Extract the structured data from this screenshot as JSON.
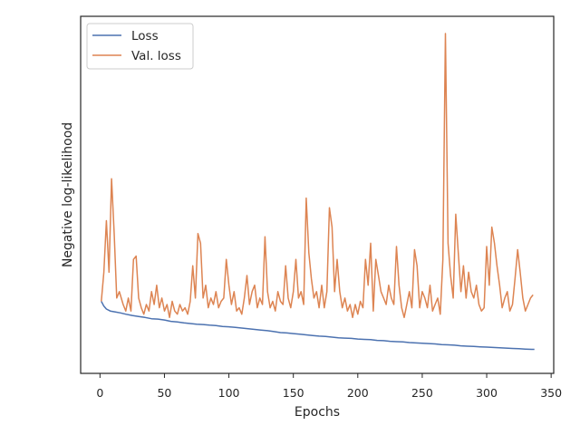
{
  "chart_data": {
    "type": "line",
    "title": "",
    "xlabel": "Epochs",
    "ylabel": "Negative log-likelihood",
    "xlim": [
      -15,
      352
    ],
    "ylim": [
      0,
      1
    ],
    "x_ticks": [
      0,
      50,
      100,
      150,
      200,
      250,
      300,
      350
    ],
    "y_ticks_shown": false,
    "grid": false,
    "legend_position": "top-left",
    "series": [
      {
        "name": "Loss",
        "color": "#4c72b0",
        "points": [
          [
            1,
            0.17
          ],
          [
            3,
            0.155
          ],
          [
            5,
            0.146
          ],
          [
            8,
            0.14
          ],
          [
            12,
            0.137
          ],
          [
            16,
            0.134
          ],
          [
            20,
            0.13
          ],
          [
            25,
            0.126
          ],
          [
            30,
            0.123
          ],
          [
            35,
            0.12
          ],
          [
            40,
            0.116
          ],
          [
            45,
            0.115
          ],
          [
            50,
            0.112
          ],
          [
            55,
            0.108
          ],
          [
            60,
            0.106
          ],
          [
            65,
            0.103
          ],
          [
            70,
            0.101
          ],
          [
            75,
            0.099
          ],
          [
            80,
            0.098
          ],
          [
            85,
            0.096
          ],
          [
            90,
            0.095
          ],
          [
            95,
            0.092
          ],
          [
            100,
            0.091
          ],
          [
            105,
            0.089
          ],
          [
            110,
            0.087
          ],
          [
            115,
            0.085
          ],
          [
            120,
            0.083
          ],
          [
            125,
            0.081
          ],
          [
            130,
            0.079
          ],
          [
            135,
            0.076
          ],
          [
            140,
            0.073
          ],
          [
            145,
            0.072
          ],
          [
            150,
            0.07
          ],
          [
            155,
            0.068
          ],
          [
            160,
            0.066
          ],
          [
            165,
            0.064
          ],
          [
            170,
            0.062
          ],
          [
            175,
            0.061
          ],
          [
            180,
            0.059
          ],
          [
            185,
            0.057
          ],
          [
            190,
            0.056
          ],
          [
            195,
            0.055
          ],
          [
            200,
            0.053
          ],
          [
            205,
            0.052
          ],
          [
            210,
            0.051
          ],
          [
            215,
            0.049
          ],
          [
            220,
            0.048
          ],
          [
            225,
            0.046
          ],
          [
            230,
            0.045
          ],
          [
            235,
            0.044
          ],
          [
            240,
            0.042
          ],
          [
            245,
            0.041
          ],
          [
            250,
            0.04
          ],
          [
            255,
            0.039
          ],
          [
            260,
            0.038
          ],
          [
            265,
            0.036
          ],
          [
            270,
            0.035
          ],
          [
            275,
            0.034
          ],
          [
            280,
            0.032
          ],
          [
            285,
            0.031
          ],
          [
            290,
            0.03
          ],
          [
            295,
            0.029
          ],
          [
            300,
            0.028
          ],
          [
            305,
            0.027
          ],
          [
            310,
            0.026
          ],
          [
            315,
            0.025
          ],
          [
            320,
            0.024
          ],
          [
            325,
            0.023
          ],
          [
            330,
            0.022
          ],
          [
            335,
            0.021
          ],
          [
            337,
            0.021
          ]
        ]
      },
      {
        "name": "Val. loss",
        "color": "#dd8452",
        "points": [
          [
            1,
            0.17
          ],
          [
            3,
            0.26
          ],
          [
            5,
            0.42
          ],
          [
            7,
            0.26
          ],
          [
            9,
            0.55
          ],
          [
            11,
            0.38
          ],
          [
            13,
            0.18
          ],
          [
            15,
            0.2
          ],
          [
            18,
            0.16
          ],
          [
            20,
            0.14
          ],
          [
            22,
            0.18
          ],
          [
            24,
            0.14
          ],
          [
            26,
            0.3
          ],
          [
            28,
            0.31
          ],
          [
            30,
            0.18
          ],
          [
            32,
            0.15
          ],
          [
            34,
            0.13
          ],
          [
            36,
            0.16
          ],
          [
            38,
            0.14
          ],
          [
            40,
            0.2
          ],
          [
            42,
            0.16
          ],
          [
            44,
            0.22
          ],
          [
            46,
            0.15
          ],
          [
            48,
            0.18
          ],
          [
            50,
            0.14
          ],
          [
            52,
            0.16
          ],
          [
            54,
            0.12
          ],
          [
            56,
            0.17
          ],
          [
            58,
            0.14
          ],
          [
            60,
            0.13
          ],
          [
            62,
            0.16
          ],
          [
            64,
            0.14
          ],
          [
            66,
            0.15
          ],
          [
            68,
            0.13
          ],
          [
            70,
            0.17
          ],
          [
            72,
            0.28
          ],
          [
            74,
            0.18
          ],
          [
            76,
            0.38
          ],
          [
            78,
            0.35
          ],
          [
            80,
            0.18
          ],
          [
            82,
            0.22
          ],
          [
            84,
            0.15
          ],
          [
            86,
            0.18
          ],
          [
            88,
            0.16
          ],
          [
            90,
            0.2
          ],
          [
            92,
            0.15
          ],
          [
            94,
            0.17
          ],
          [
            96,
            0.18
          ],
          [
            98,
            0.3
          ],
          [
            100,
            0.22
          ],
          [
            102,
            0.16
          ],
          [
            104,
            0.2
          ],
          [
            106,
            0.14
          ],
          [
            108,
            0.15
          ],
          [
            110,
            0.13
          ],
          [
            112,
            0.18
          ],
          [
            114,
            0.25
          ],
          [
            116,
            0.16
          ],
          [
            118,
            0.2
          ],
          [
            120,
            0.22
          ],
          [
            122,
            0.15
          ],
          [
            124,
            0.18
          ],
          [
            126,
            0.16
          ],
          [
            128,
            0.37
          ],
          [
            130,
            0.2
          ],
          [
            132,
            0.15
          ],
          [
            134,
            0.17
          ],
          [
            136,
            0.14
          ],
          [
            138,
            0.2
          ],
          [
            140,
            0.17
          ],
          [
            142,
            0.16
          ],
          [
            144,
            0.28
          ],
          [
            146,
            0.18
          ],
          [
            148,
            0.15
          ],
          [
            150,
            0.2
          ],
          [
            152,
            0.3
          ],
          [
            154,
            0.18
          ],
          [
            156,
            0.2
          ],
          [
            158,
            0.16
          ],
          [
            160,
            0.49
          ],
          [
            162,
            0.32
          ],
          [
            164,
            0.24
          ],
          [
            166,
            0.18
          ],
          [
            168,
            0.2
          ],
          [
            170,
            0.15
          ],
          [
            172,
            0.22
          ],
          [
            174,
            0.15
          ],
          [
            176,
            0.2
          ],
          [
            178,
            0.46
          ],
          [
            180,
            0.4
          ],
          [
            182,
            0.2
          ],
          [
            184,
            0.3
          ],
          [
            186,
            0.2
          ],
          [
            188,
            0.15
          ],
          [
            190,
            0.18
          ],
          [
            192,
            0.14
          ],
          [
            194,
            0.16
          ],
          [
            196,
            0.12
          ],
          [
            198,
            0.16
          ],
          [
            200,
            0.13
          ],
          [
            202,
            0.17
          ],
          [
            204,
            0.15
          ],
          [
            206,
            0.3
          ],
          [
            208,
            0.22
          ],
          [
            210,
            0.35
          ],
          [
            212,
            0.14
          ],
          [
            214,
            0.3
          ],
          [
            216,
            0.25
          ],
          [
            218,
            0.2
          ],
          [
            220,
            0.18
          ],
          [
            222,
            0.16
          ],
          [
            224,
            0.22
          ],
          [
            226,
            0.18
          ],
          [
            228,
            0.16
          ],
          [
            230,
            0.34
          ],
          [
            232,
            0.22
          ],
          [
            234,
            0.15
          ],
          [
            236,
            0.12
          ],
          [
            238,
            0.16
          ],
          [
            240,
            0.2
          ],
          [
            242,
            0.15
          ],
          [
            244,
            0.33
          ],
          [
            246,
            0.28
          ],
          [
            248,
            0.15
          ],
          [
            250,
            0.2
          ],
          [
            252,
            0.18
          ],
          [
            254,
            0.15
          ],
          [
            256,
            0.22
          ],
          [
            258,
            0.14
          ],
          [
            260,
            0.16
          ],
          [
            262,
            0.18
          ],
          [
            264,
            0.13
          ],
          [
            266,
            0.3
          ],
          [
            268,
            1.0
          ],
          [
            270,
            0.35
          ],
          [
            272,
            0.25
          ],
          [
            274,
            0.18
          ],
          [
            276,
            0.44
          ],
          [
            278,
            0.32
          ],
          [
            280,
            0.2
          ],
          [
            282,
            0.28
          ],
          [
            284,
            0.18
          ],
          [
            286,
            0.26
          ],
          [
            288,
            0.2
          ],
          [
            290,
            0.18
          ],
          [
            292,
            0.22
          ],
          [
            294,
            0.16
          ],
          [
            296,
            0.14
          ],
          [
            298,
            0.15
          ],
          [
            300,
            0.34
          ],
          [
            302,
            0.22
          ],
          [
            304,
            0.4
          ],
          [
            306,
            0.35
          ],
          [
            308,
            0.28
          ],
          [
            310,
            0.22
          ],
          [
            312,
            0.15
          ],
          [
            314,
            0.18
          ],
          [
            316,
            0.2
          ],
          [
            318,
            0.14
          ],
          [
            320,
            0.16
          ],
          [
            322,
            0.24
          ],
          [
            324,
            0.33
          ],
          [
            326,
            0.26
          ],
          [
            328,
            0.18
          ],
          [
            330,
            0.14
          ],
          [
            332,
            0.16
          ],
          [
            334,
            0.18
          ],
          [
            336,
            0.19
          ]
        ]
      }
    ]
  }
}
